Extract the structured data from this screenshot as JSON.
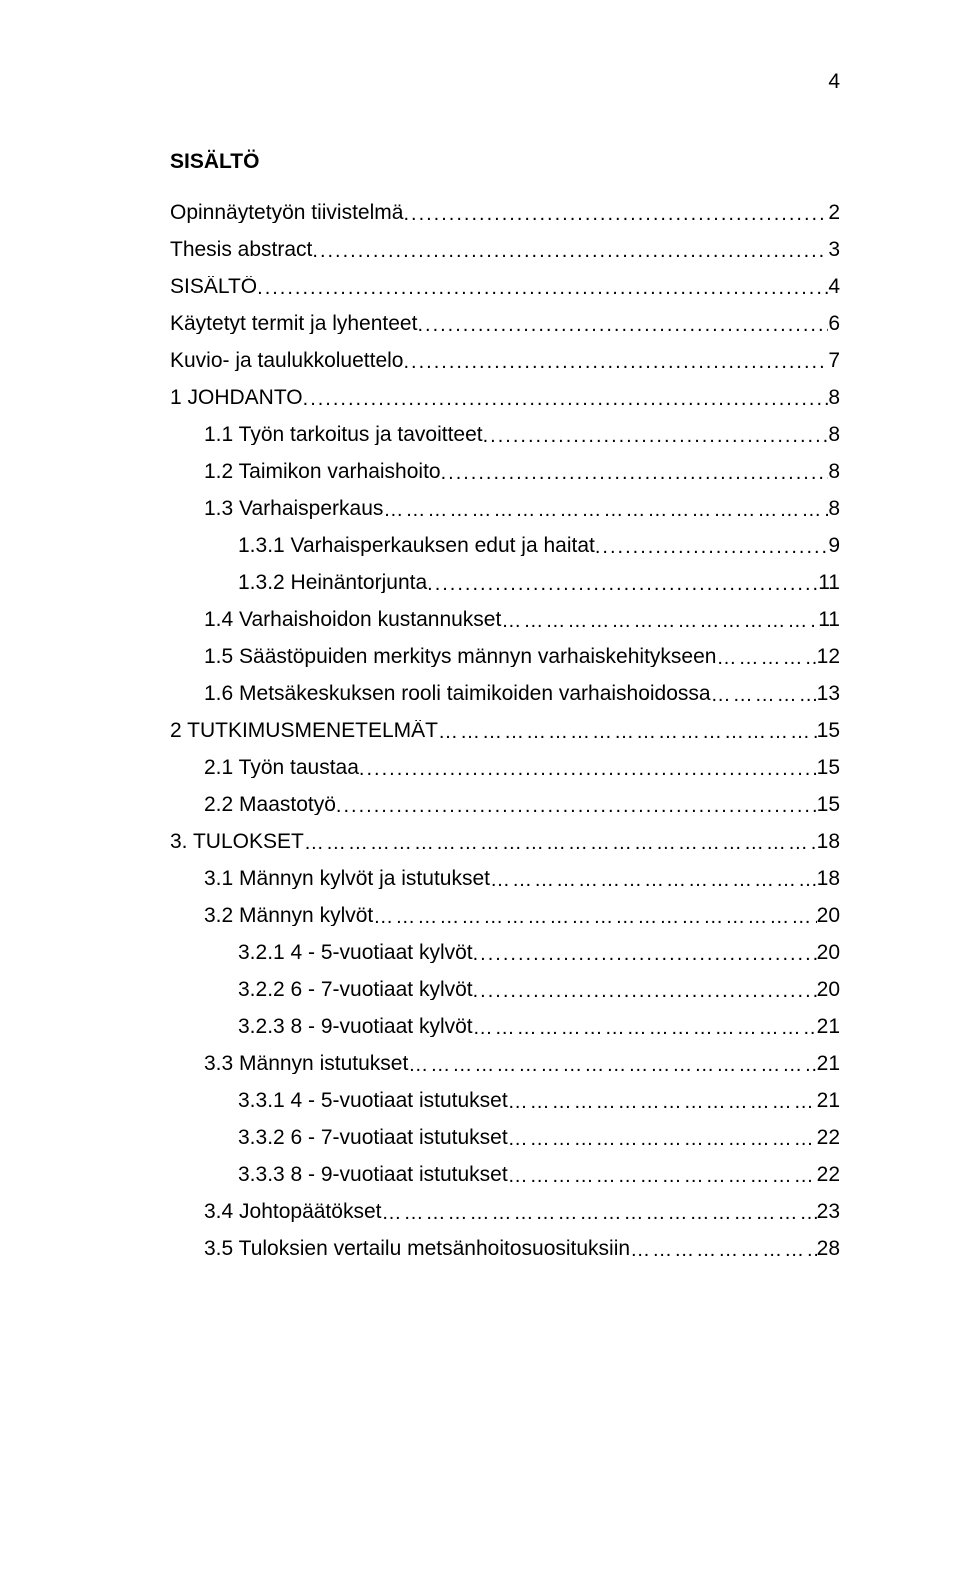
{
  "page_number": "4",
  "title": "SISÄLTÖ",
  "font_family": "Arial",
  "font_size_pt": 16,
  "text_color": "#000000",
  "background_color": "#ffffff",
  "entries": [
    {
      "label": "Opinnäytetyön tiivistelmä",
      "page": "2",
      "indent": 0,
      "leader": "........................................................................................"
    },
    {
      "label": "Thesis abstract",
      "page": "3",
      "indent": 0,
      "leader": "......................................................................................................."
    },
    {
      "label": "SISÄLTÖ",
      "page": "4",
      "indent": 0,
      "leader": "................................................................................................................."
    },
    {
      "label": "Käytetyt termit ja lyhenteet",
      "page": "6",
      "indent": 0,
      "leader": "....................................................................................."
    },
    {
      "label": "Kuvio- ja taulukkoluettelo",
      "page": "7",
      "indent": 0,
      "leader": "........................................................................................"
    },
    {
      "label": "1 JOHDANTO",
      "page": "8",
      "indent": 0,
      "leader": "........................................................................................................."
    },
    {
      "label": "1.1 Työn tarkoitus ja tavoitteet",
      "page": "8",
      "indent": 1,
      "leader": "................................................................................."
    },
    {
      "label": "1.2 Taimikon varhaishoito",
      "page": "8",
      "indent": 1,
      "leader": ".........................................................................................."
    },
    {
      "label": "1.3 Varhaisperkaus",
      "page": "8",
      "indent": 1,
      "leader": "…………………………………………………………………….."
    },
    {
      "label": "1.3.1 Varhaisperkauksen edut ja haitat",
      "page": "9",
      "indent": 2,
      "leader": "......................................................."
    },
    {
      "label": "1.3.2 Heinäntorjunta",
      "page": "11",
      "indent": 2,
      "leader": "................................................................................."
    },
    {
      "label": "1.4 Varhaishoidon kustannukset",
      "page": "11",
      "indent": 1,
      "leader": "…………………………………………………..."
    },
    {
      "label": "1.5 Säästöpuiden merkitys männyn varhaiskehitykseen",
      "page": "12",
      "indent": 1,
      "leader": "……………….."
    },
    {
      "label": "1.6 Metsäkeskuksen rooli taimikoiden varhaishoidossa",
      "page": "13",
      "indent": 1,
      "leader": "………………..."
    },
    {
      "label": "2 TUTKIMUSMENETELMÄT",
      "page": "15",
      "indent": 0,
      "leader": "………………………………………………………..."
    },
    {
      "label": "2.1 Työn taustaa",
      "page": "15",
      "indent": 1,
      "leader": "........................................................................................................"
    },
    {
      "label": "2.2 Maastotyö",
      "page": "15",
      "indent": 1,
      "leader": "............................................................................................................"
    },
    {
      "label": "3. TULOKSET",
      "page": "18",
      "indent": 0,
      "leader": "…………………………………………………………………………….."
    },
    {
      "label": "3.1 Männyn kylvöt ja istutukset",
      "page": "18",
      "indent": 1,
      "leader": "……………………………………………………."
    },
    {
      "label": "3.2 Männyn kylvöt",
      "page": "20",
      "indent": 1,
      "leader": "……………………………………………………………………..."
    },
    {
      "label": "3.2.1 4 - 5-vuotiaat kylvöt",
      "page": "20",
      "indent": 2,
      "leader": "........................................................................."
    },
    {
      "label": "3.2.2 6 - 7-vuotiaat kylvöt",
      "page": "20",
      "indent": 2,
      "leader": "........................................................................."
    },
    {
      "label": "3.2.3 8 - 9-vuotiaat kylvöt",
      "page": "21",
      "indent": 2,
      "leader": "……………………………………………………….."
    },
    {
      "label": "3.3 Männyn istutukset",
      "page": "21",
      "indent": 1,
      "leader": "………………………………………………………………."
    },
    {
      "label": "3.3.1 4 - 5-vuotiaat istutukset",
      "page": "21",
      "indent": 2,
      "leader": "………………………………………………..."
    },
    {
      "label": "3.3.2 6 - 7-vuotiaat istutukset",
      "page": "22",
      "indent": 2,
      "leader": "…………………………………………………."
    },
    {
      "label": "3.3.3 8 - 9-vuotiaat istutukset",
      "page": "22",
      "indent": 2,
      "leader": "…………………………………………………."
    },
    {
      "label": "3.4 Johtopäätökset",
      "page": "23",
      "indent": 1,
      "leader": "……………………………………………………………………."
    },
    {
      "label": "3.5 Tuloksien vertailu metsänhoitosuosituksiin",
      "page": "28",
      "indent": 1,
      "leader": "……………………………….."
    }
  ]
}
